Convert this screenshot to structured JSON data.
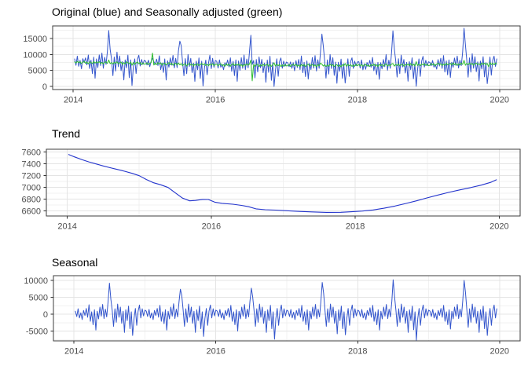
{
  "chart_data": {
    "type": "line",
    "description": "Weekly time-series decomposition shown as three stacked panels (ggplot theme_bw style): original and seasonally adjusted series, trend component, seasonal component.",
    "frequency": "weekly",
    "x_start_year": 2014,
    "weeks_per_year": 52,
    "n_points": 310,
    "x_axis": {
      "lim": [
        2013.71,
        2020.29
      ],
      "ticks": [
        2014,
        2016,
        2018,
        2020
      ],
      "tick_labels": [
        "2014",
        "2016",
        "2018",
        "2020"
      ],
      "minor": [
        2015,
        2017,
        2019
      ]
    },
    "colors": {
      "original": "#3355CC",
      "seasonally_adjusted": "#2EBE2E",
      "trend": "#2233CC",
      "seasonal": "#3355CC",
      "grid_major": "#E4E4E4",
      "grid_minor": "#F1F1F1",
      "panel_border": "#3C3C3C",
      "tick": "#333333",
      "tick_label": "#4D4D4D",
      "title": "#000000",
      "background": "#FFFFFF"
    },
    "panels": [
      {
        "title": "Original (blue) and Seasonally adjusted (green)",
        "series": [
          "original",
          "seasonally_adjusted"
        ],
        "ylim": [
          -950,
          18900
        ],
        "yticks": [
          0,
          5000,
          10000,
          15000
        ],
        "ytick_labels": [
          "0",
          "5000",
          "10000",
          "15000"
        ],
        "yminor": [
          2500,
          7500,
          12500,
          17500
        ],
        "grid": true,
        "legend": "none (colors named in title)"
      },
      {
        "title": "Trend",
        "series": [
          "trend"
        ],
        "ylim": [
          6510,
          7645
        ],
        "yticks": [
          6600,
          6800,
          7000,
          7200,
          7400,
          7600
        ],
        "ytick_labels": [
          "6600",
          "6800",
          "7000",
          "7200",
          "7400",
          "7600"
        ],
        "yminor": [
          6700,
          6900,
          7100,
          7300,
          7500
        ],
        "grid": true,
        "legend": "none"
      },
      {
        "title": "Seasonal",
        "series": [
          "seasonal"
        ],
        "ylim": [
          -7900,
          11400
        ],
        "yticks": [
          -5000,
          0,
          5000,
          10000
        ],
        "ytick_labels": [
          "-5000",
          "0",
          "5000",
          "10000"
        ],
        "yminor": [
          -7500,
          -2500,
          2500,
          7500
        ],
        "grid": true,
        "legend": "none"
      }
    ],
    "composition": {
      "seasonally_adjusted": "trend + remainder",
      "original": "seasonally_adjusted + seasonal"
    },
    "trend_anchors": [
      [
        2014.02,
        7555
      ],
      [
        2014.1,
        7515
      ],
      [
        2014.2,
        7470
      ],
      [
        2014.3,
        7430
      ],
      [
        2014.4,
        7395
      ],
      [
        2014.5,
        7360
      ],
      [
        2014.6,
        7330
      ],
      [
        2014.7,
        7300
      ],
      [
        2014.8,
        7270
      ],
      [
        2014.9,
        7235
      ],
      [
        2015.0,
        7195
      ],
      [
        2015.1,
        7130
      ],
      [
        2015.2,
        7075
      ],
      [
        2015.3,
        7040
      ],
      [
        2015.4,
        6995
      ],
      [
        2015.5,
        6905
      ],
      [
        2015.6,
        6815
      ],
      [
        2015.7,
        6768
      ],
      [
        2015.78,
        6775
      ],
      [
        2015.88,
        6792
      ],
      [
        2015.96,
        6790
      ],
      [
        2016.05,
        6745
      ],
      [
        2016.15,
        6725
      ],
      [
        2016.3,
        6710
      ],
      [
        2016.42,
        6690
      ],
      [
        2016.52,
        6668
      ],
      [
        2016.62,
        6632
      ],
      [
        2016.75,
        6617
      ],
      [
        2016.9,
        6610
      ],
      [
        2017.05,
        6600
      ],
      [
        2017.2,
        6589
      ],
      [
        2017.4,
        6580
      ],
      [
        2017.6,
        6571
      ],
      [
        2017.8,
        6573
      ],
      [
        2017.95,
        6582
      ],
      [
        2018.1,
        6594
      ],
      [
        2018.25,
        6613
      ],
      [
        2018.4,
        6642
      ],
      [
        2018.55,
        6678
      ],
      [
        2018.7,
        6722
      ],
      [
        2018.85,
        6768
      ],
      [
        2019.0,
        6818
      ],
      [
        2019.15,
        6866
      ],
      [
        2019.3,
        6912
      ],
      [
        2019.45,
        6953
      ],
      [
        2019.6,
        6992
      ],
      [
        2019.75,
        7035
      ],
      [
        2019.88,
        7082
      ],
      [
        2019.96,
        7125
      ]
    ],
    "seasonal_by_year": [
      [
        900,
        -700,
        1600,
        -1100,
        400,
        -1600,
        1100,
        -400,
        1700,
        -900,
        2800,
        -2100,
        700,
        -3100,
        1300,
        -4700,
        900,
        -1400,
        2100,
        -600,
        2900,
        -1300,
        1500,
        -800,
        3800,
        9200,
        4400,
        1200,
        -3600,
        1600,
        -2400,
        3000,
        -900,
        2100,
        -2700,
        900,
        -5400,
        1300,
        -1900,
        2400,
        -4300,
        700,
        -6300,
        -1300,
        1700,
        -3300,
        900,
        2700,
        -1100,
        1600,
        -500,
        1200
      ],
      [
        900,
        -700,
        1400,
        -1100,
        400,
        -1600,
        1100,
        -400,
        1700,
        -900,
        2600,
        -2100,
        700,
        -2800,
        1300,
        -4700,
        900,
        -1400,
        2100,
        -600,
        3100,
        -1300,
        1500,
        -800,
        3800,
        7400,
        5600,
        1200,
        -3600,
        1600,
        -2400,
        3000,
        -900,
        2100,
        -2700,
        900,
        -5400,
        1300,
        -1900,
        2400,
        -4300,
        700,
        -6600,
        -1300,
        1700,
        -3300,
        900,
        2700,
        -1100,
        1600,
        -500,
        1200
      ],
      [
        900,
        -700,
        1400,
        -1100,
        400,
        -1600,
        1100,
        -400,
        1700,
        -900,
        2600,
        -2100,
        700,
        -3100,
        1300,
        -5000,
        900,
        -1400,
        2100,
        -600,
        2900,
        -1300,
        1500,
        -800,
        3800,
        7700,
        5100,
        1200,
        -3600,
        1600,
        -2400,
        3000,
        -900,
        2100,
        -2700,
        900,
        -5400,
        1300,
        -1900,
        2600,
        -4300,
        700,
        -7400,
        -1300,
        1700,
        -3300,
        900,
        2700,
        -1100,
        1600,
        -500,
        1200
      ],
      [
        900,
        -700,
        1400,
        -1100,
        600,
        -1600,
        1100,
        -400,
        1700,
        -900,
        2600,
        -2100,
        700,
        -3100,
        1300,
        -4700,
        900,
        -1400,
        2100,
        -600,
        2900,
        -1300,
        1500,
        -800,
        3800,
        9400,
        6200,
        1200,
        -3600,
        1600,
        -2400,
        3000,
        -900,
        2100,
        -2700,
        900,
        -5800,
        1300,
        -1900,
        2400,
        -4300,
        700,
        -6100,
        -1300,
        1700,
        -3300,
        900,
        2700,
        -1100,
        1600,
        -500,
        1200
      ],
      [
        900,
        -700,
        1400,
        -1100,
        400,
        -1600,
        1100,
        -400,
        1900,
        -900,
        2600,
        -2100,
        700,
        -3100,
        1300,
        -4700,
        900,
        -1400,
        2100,
        -600,
        2900,
        -1300,
        1500,
        -800,
        3800,
        10200,
        5300,
        1200,
        -3600,
        1600,
        -2400,
        3000,
        -900,
        2100,
        -2700,
        900,
        -5400,
        1300,
        -1900,
        2400,
        -4600,
        700,
        -7700,
        -1300,
        1700,
        -3300,
        900,
        2700,
        -1100,
        1600,
        -500,
        1200
      ],
      [
        900,
        -700,
        1400,
        -1100,
        400,
        -1600,
        1100,
        -400,
        1700,
        -900,
        2600,
        -2100,
        700,
        -3100,
        1300,
        -4400,
        900,
        -1400,
        2100,
        -600,
        2900,
        -1300,
        1500,
        -800,
        3800,
        10000,
        6500,
        1200,
        -3900,
        1600,
        -2400,
        3000,
        -900,
        2100,
        -2700,
        900,
        -5400,
        1300,
        -1900,
        2400,
        -4300,
        700,
        -6300,
        -1300,
        1700,
        -3300,
        900,
        2700,
        -1100,
        1600,
        -500,
        1200
      ]
    ],
    "remainder_by_year": [
      [
        150,
        -220,
        330,
        -120,
        260,
        -380,
        90,
        410,
        -260,
        180,
        -440,
        240,
        60,
        -310,
        420,
        -150,
        280,
        -90,
        360,
        -270,
        130,
        -400,
        220,
        310,
        -180,
        900,
        -230,
        140,
        -360,
        270,
        -110,
        380,
        -240,
        90,
        330,
        -420,
        160,
        -280,
        440,
        120,
        -190,
        350,
        -650,
        230,
        -340,
        110,
        420,
        -160,
        280,
        -380,
        190,
        -240
      ],
      [
        -180,
        240,
        -350,
        130,
        290,
        3300,
        -420,
        180,
        -260,
        370,
        -90,
        310,
        -440,
        150,
        260,
        -330,
        90,
        400,
        -210,
        280,
        -380,
        140,
        330,
        -250,
        410,
        -170,
        290,
        -360,
        120,
        260,
        -430,
        180,
        340,
        -110,
        270,
        -390,
        230,
        -160,
        350,
        -270,
        90,
        420,
        -30,
        310,
        -240,
        160,
        -350,
        270,
        -120,
        380,
        -290,
        140
      ],
      [
        220,
        -310,
        160,
        380,
        -240,
        90,
        -420,
        330,
        -150,
        270,
        -380,
        120,
        440,
        -200,
        310,
        -90,
        360,
        -270,
        180,
        -430,
        250,
        -140,
        390,
        -60,
        320,
        1600,
        -4900,
        240,
        -330,
        170,
        290,
        -410,
        130,
        -260,
        400,
        -180,
        90,
        350,
        -290,
        220,
        -370,
        140,
        800,
        -250,
        330,
        -120,
        280,
        -400,
        190,
        -310,
        260,
        -170
      ],
      [
        -130,
        290,
        -360,
        180,
        240,
        -90,
        370,
        -280,
        150,
        -410,
        320,
        -170,
        260,
        -390,
        110,
        430,
        -230,
        90,
        340,
        -260,
        180,
        -440,
        270,
        -110,
        700,
        380,
        -190,
        250,
        -350,
        140,
        -270,
        410,
        -90,
        300,
        -380,
        160,
        230,
        -310,
        90,
        -420,
        280,
        -150,
        600,
        -260,
        350,
        -100,
        240,
        -330,
        170,
        -280,
        390,
        -140
      ],
      [
        240,
        -160,
        330,
        -290,
        110,
        380,
        -220,
        90,
        -350,
        270,
        -130,
        420,
        -240,
        180,
        -390,
        300,
        -110,
        260,
        -330,
        150,
        410,
        -270,
        90,
        -180,
        350,
        500,
        -310,
        230,
        -140,
        380,
        -260,
        120,
        290,
        -400,
        170,
        -90,
        330,
        -250,
        440,
        -190,
        260,
        -370,
        1000,
        -230,
        140,
        -310,
        280,
        -90,
        360,
        -240,
        180,
        -320
      ],
      [
        -210,
        340,
        -120,
        280,
        -380,
        160,
        420,
        -90,
        250,
        -330,
        140,
        -270,
        390,
        -180,
        90,
        310,
        -240,
        430,
        -150,
        270,
        -360,
        120,
        -290,
        380,
        -100,
        1200,
        -340,
        260,
        -170,
        330,
        -90,
        240,
        -410,
        180,
        290,
        -230,
        90,
        -380,
        310,
        -140,
        270,
        -320,
        150,
        -900,
        420,
        -260,
        180,
        -350,
        230,
        -120
      ]
    ]
  }
}
